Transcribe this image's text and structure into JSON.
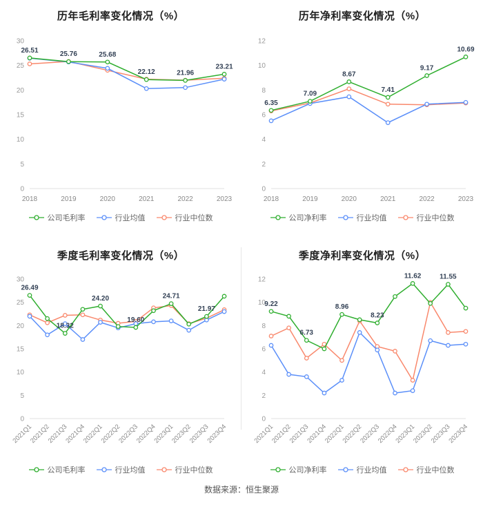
{
  "source_note": "数据来源：恒生聚源",
  "colors": {
    "company": "#2fae2f",
    "industry_avg": "#5b8ff9",
    "industry_median": "#f9886c",
    "label": "#334155",
    "axis_tick": "#999999",
    "x_tick": "#888888",
    "axis_line": "#e0e0e0"
  },
  "chart_data": [
    {
      "type": "line",
      "title": "历年毛利率变化情况（%）",
      "x": [
        "2018",
        "2019",
        "2020",
        "2021",
        "2022",
        "2023"
      ],
      "ylim": [
        0,
        30
      ],
      "yticks": [
        0,
        5,
        10,
        15,
        20,
        25,
        30
      ],
      "rotate_x_labels": false,
      "legend_position": "bottom",
      "grid": false,
      "series": [
        {
          "name": "公司毛利率",
          "color": "#2fae2f",
          "values": [
            26.51,
            25.76,
            25.68,
            22.12,
            21.96,
            23.21
          ],
          "labels": [
            "26.51",
            "25.76",
            "25.68",
            "22.12",
            "21.96",
            "23.21"
          ]
        },
        {
          "name": "行业均值",
          "color": "#5b8ff9",
          "values": [
            26.45,
            25.7,
            24.4,
            20.3,
            20.5,
            22.2
          ]
        },
        {
          "name": "行业中位数",
          "color": "#f9886c",
          "values": [
            25.3,
            25.8,
            24.0,
            22.2,
            22.0,
            22.4
          ]
        }
      ]
    },
    {
      "type": "line",
      "title": "历年净利率变化情况（%）",
      "x": [
        "2018",
        "2019",
        "2020",
        "2021",
        "2022",
        "2023"
      ],
      "ylim": [
        0,
        12
      ],
      "yticks": [
        0,
        2,
        4,
        6,
        8,
        10,
        12
      ],
      "rotate_x_labels": false,
      "legend_position": "bottom",
      "grid": false,
      "series": [
        {
          "name": "公司净利率",
          "color": "#2fae2f",
          "values": [
            6.35,
            7.09,
            8.67,
            7.41,
            9.17,
            10.69
          ],
          "labels": [
            "6.35",
            "7.09",
            "8.67",
            "7.41",
            "9.17",
            "10.69"
          ]
        },
        {
          "name": "行业均值",
          "color": "#5b8ff9",
          "values": [
            5.5,
            6.9,
            7.45,
            5.35,
            6.85,
            7.0
          ]
        },
        {
          "name": "行业中位数",
          "color": "#f9886c",
          "values": [
            6.3,
            6.95,
            8.1,
            6.85,
            6.8,
            6.95
          ]
        }
      ]
    },
    {
      "type": "line",
      "title": "季度毛利率变化情况（%）",
      "x": [
        "2021Q1",
        "2021Q2",
        "2021Q3",
        "2021Q4",
        "2022Q1",
        "2022Q2",
        "2022Q3",
        "2022Q4",
        "2023Q1",
        "2023Q2",
        "2023Q3",
        "2023Q4"
      ],
      "ylim": [
        0,
        30
      ],
      "yticks": [
        0,
        5,
        10,
        15,
        20,
        25,
        30
      ],
      "rotate_x_labels": true,
      "legend_position": "bottom",
      "grid": false,
      "series": [
        {
          "name": "公司毛利率",
          "color": "#2fae2f",
          "values": [
            26.49,
            21.5,
            18.32,
            23.5,
            24.2,
            19.8,
            19.6,
            23.2,
            24.71,
            20.3,
            21.97,
            26.3
          ],
          "labels": [
            "26.49",
            null,
            "18.32",
            null,
            "24.20",
            null,
            "19.60",
            null,
            "24.71",
            null,
            "21.97",
            null
          ]
        },
        {
          "name": "行业均值",
          "color": "#5b8ff9",
          "values": [
            22.0,
            18.0,
            20.4,
            17.0,
            20.7,
            19.5,
            20.4,
            20.8,
            21.0,
            19.0,
            21.2,
            23.0
          ]
        },
        {
          "name": "行业中位数",
          "color": "#f9886c",
          "values": [
            22.3,
            20.6,
            22.2,
            22.3,
            21.2,
            20.5,
            20.9,
            23.8,
            24.3,
            20.4,
            21.6,
            23.4
          ]
        }
      ]
    },
    {
      "type": "line",
      "title": "季度净利率变化情况（%）",
      "x": [
        "2021Q1",
        "2021Q2",
        "2021Q3",
        "2021Q4",
        "2022Q1",
        "2022Q2",
        "2022Q3",
        "2022Q4",
        "2023Q1",
        "2023Q2",
        "2023Q3",
        "2023Q4"
      ],
      "ylim": [
        0,
        12
      ],
      "yticks": [
        0,
        2,
        4,
        6,
        8,
        10,
        12
      ],
      "rotate_x_labels": true,
      "legend_position": "bottom",
      "grid": false,
      "series": [
        {
          "name": "公司净利率",
          "color": "#2fae2f",
          "values": [
            9.22,
            8.8,
            6.73,
            6.0,
            8.96,
            8.5,
            8.23,
            10.5,
            11.62,
            9.9,
            11.55,
            9.5
          ],
          "labels": [
            "9.22",
            null,
            "6.73",
            null,
            "8.96",
            null,
            "8.23",
            null,
            "11.62",
            null,
            "11.55",
            null
          ]
        },
        {
          "name": "行业均值",
          "color": "#5b8ff9",
          "values": [
            6.3,
            3.8,
            3.6,
            2.2,
            3.3,
            7.4,
            5.9,
            2.2,
            2.4,
            6.7,
            6.3,
            6.4
          ]
        },
        {
          "name": "行业中位数",
          "color": "#f9886c",
          "values": [
            7.1,
            7.8,
            5.2,
            6.4,
            5.0,
            8.4,
            6.2,
            5.8,
            3.3,
            10.0,
            7.4,
            7.5
          ]
        }
      ]
    }
  ]
}
